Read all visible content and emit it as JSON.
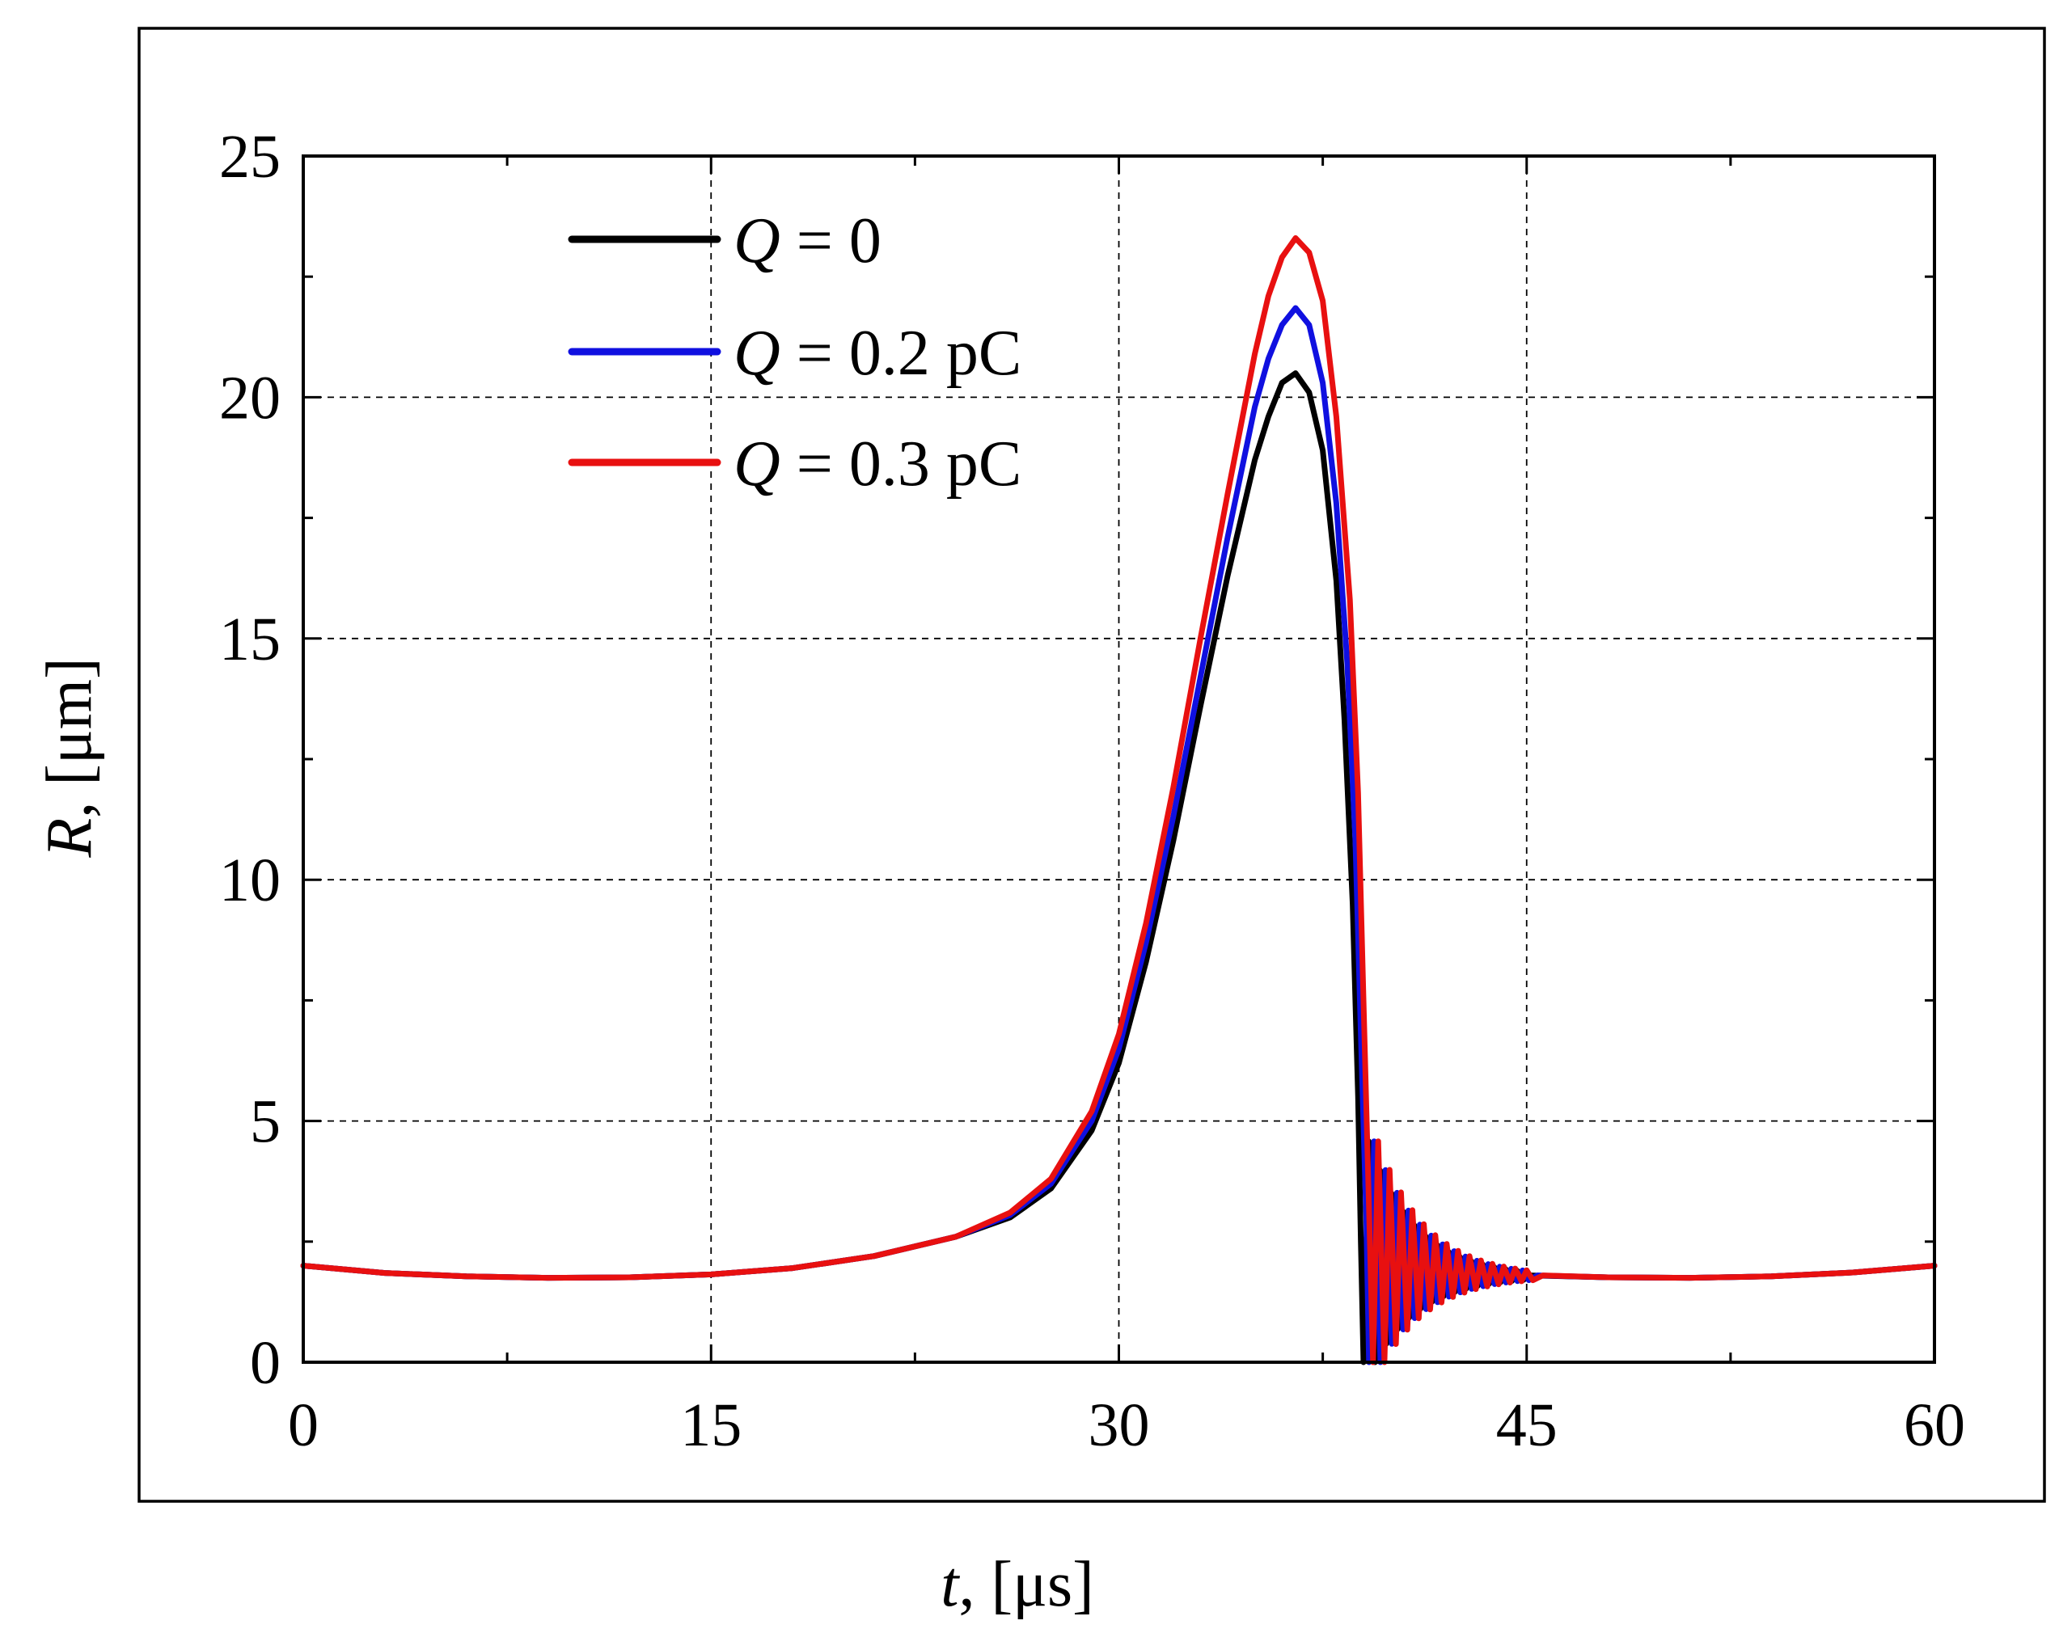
{
  "chart_data": {
    "type": "line",
    "title": "",
    "xlabel": {
      "symbol": "t",
      "unit": ", [μs]"
    },
    "ylabel": {
      "symbol": "R",
      "unit": ", [μm]"
    },
    "xlim": [
      0,
      60
    ],
    "ylim": [
      0,
      25
    ],
    "xticks": [
      0,
      15,
      30,
      45,
      60
    ],
    "yticks": [
      0,
      5,
      10,
      15,
      20,
      25
    ],
    "grid": true,
    "legend_position": "top-left",
    "series": [
      {
        "name": "Q = 0",
        "legend": {
          "symbol": "Q",
          "text": " = 0"
        },
        "color": "#000000",
        "x": [
          0,
          3,
          6,
          9,
          12,
          15,
          18,
          21,
          24,
          26,
          27.5,
          29,
          30,
          31,
          32,
          33,
          34,
          35,
          35.5,
          36,
          36.5,
          37,
          37.5,
          38,
          38.3,
          38.6,
          38.8,
          38.9,
          39.0
        ],
        "y": [
          2.0,
          1.85,
          1.78,
          1.75,
          1.76,
          1.82,
          1.95,
          2.2,
          2.6,
          3.0,
          3.6,
          4.8,
          6.2,
          8.3,
          10.8,
          13.6,
          16.3,
          18.7,
          19.6,
          20.3,
          20.5,
          20.1,
          18.9,
          16.2,
          13.3,
          9.5,
          5.5,
          2.5,
          0.0
        ],
        "ringdown": {
          "start": 39.0,
          "end": 44.5,
          "amp": 2.8,
          "period": 0.42
        }
      },
      {
        "name": "Q = 0.2 pC",
        "legend": {
          "symbol": "Q",
          "text": " = 0.2 pC"
        },
        "color": "#1010e0",
        "x": [
          0,
          3,
          6,
          9,
          12,
          15,
          18,
          21,
          24,
          26,
          27.5,
          29,
          30,
          31,
          32,
          33,
          34,
          35,
          35.5,
          36,
          36.5,
          37,
          37.5,
          38,
          38.4,
          38.7,
          38.9,
          39.1,
          39.2
        ],
        "y": [
          2.0,
          1.85,
          1.78,
          1.75,
          1.76,
          1.82,
          1.95,
          2.2,
          2.6,
          3.05,
          3.7,
          5.0,
          6.5,
          8.7,
          11.3,
          14.2,
          17.1,
          19.8,
          20.8,
          21.5,
          21.85,
          21.5,
          20.3,
          17.8,
          14.5,
          10.8,
          6.8,
          3.0,
          0.0
        ],
        "ringdown": {
          "start": 39.2,
          "end": 44.8,
          "amp": 2.8,
          "period": 0.42
        }
      },
      {
        "name": "Q = 0.3 pC",
        "legend": {
          "symbol": "Q",
          "text": " = 0.3 pC"
        },
        "color": "#e81010",
        "x": [
          0,
          3,
          6,
          9,
          12,
          15,
          18,
          21,
          24,
          26,
          27.5,
          29,
          30,
          31,
          32,
          33,
          34,
          35,
          35.5,
          36,
          36.5,
          37,
          37.5,
          38,
          38.5,
          38.8,
          39.0,
          39.2,
          39.35
        ],
        "y": [
          2.0,
          1.85,
          1.78,
          1.75,
          1.76,
          1.82,
          1.95,
          2.2,
          2.6,
          3.1,
          3.8,
          5.2,
          6.8,
          9.1,
          11.9,
          15.0,
          18.0,
          20.9,
          22.1,
          22.9,
          23.3,
          23.0,
          22.0,
          19.6,
          15.8,
          11.8,
          7.5,
          3.2,
          0.0
        ],
        "ringdown": {
          "start": 39.35,
          "end": 45.0,
          "amp": 2.8,
          "period": 0.42
        }
      }
    ]
  }
}
